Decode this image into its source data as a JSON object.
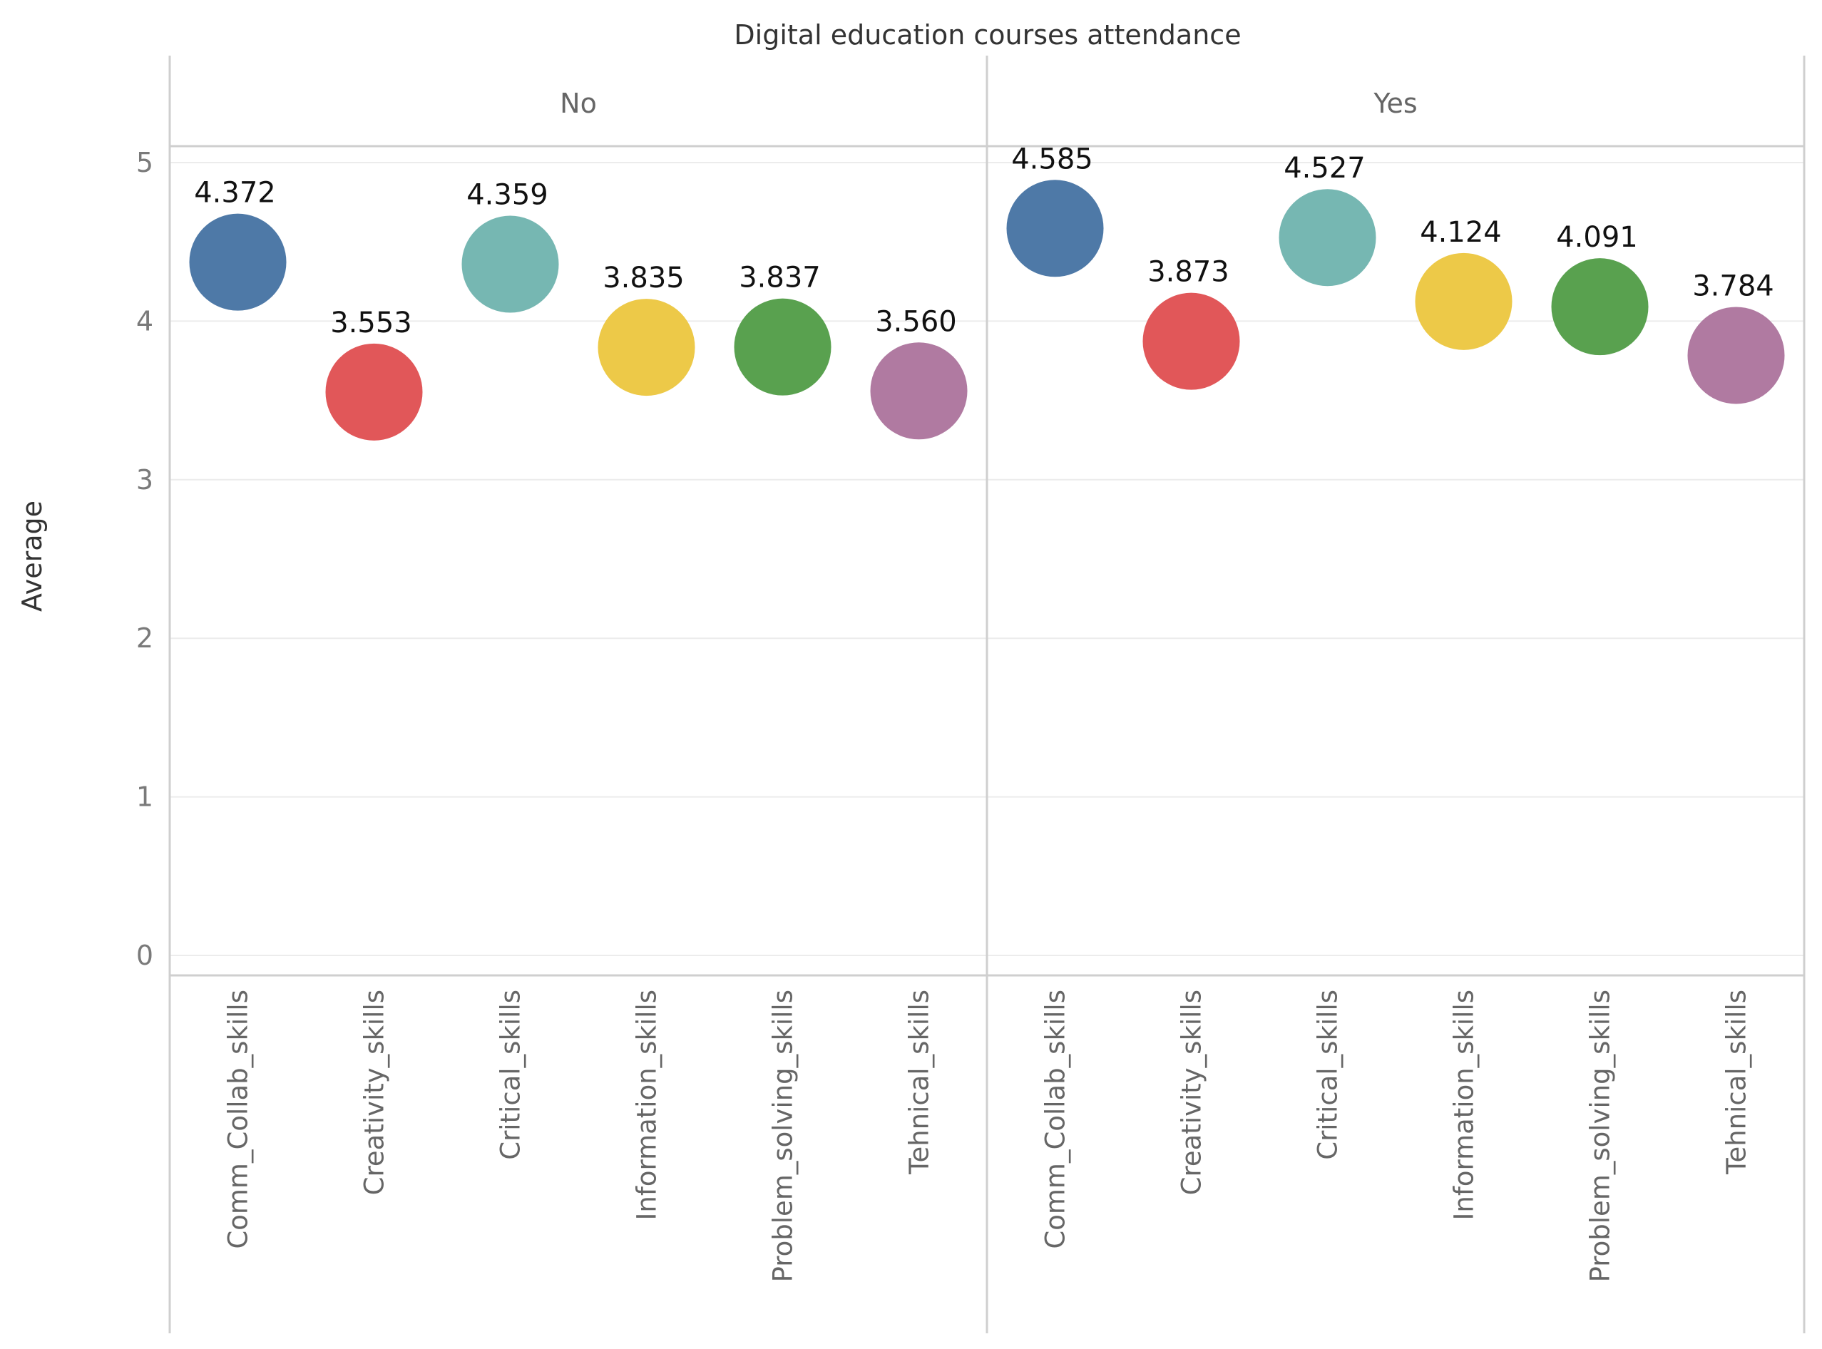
{
  "chart_data": {
    "type": "scatter",
    "title": "Digital education courses attendance",
    "ylabel": "Average",
    "xlabel": "",
    "ylim": [
      0,
      5
    ],
    "yticks": [
      0,
      1,
      2,
      3,
      4,
      5
    ],
    "grid": true,
    "categories": [
      "Comm_Collab_skills",
      "Creativity_skills",
      "Critical_skills",
      "Information_skills",
      "Problem_solving_skills",
      "Tehnical_skills"
    ],
    "colors": [
      "#4e79a7",
      "#e15759",
      "#76b7b2",
      "#edc948",
      "#59a14f",
      "#b07aa1"
    ],
    "panels": [
      {
        "name": "No",
        "values": [
          4.372,
          3.553,
          4.359,
          3.835,
          3.837,
          3.56
        ],
        "labels": [
          "4.372",
          "3.553",
          "4.359",
          "3.835",
          "3.837",
          "3.560"
        ]
      },
      {
        "name": "Yes",
        "values": [
          4.585,
          3.873,
          4.527,
          4.124,
          4.091,
          3.784
        ],
        "labels": [
          "4.585",
          "3.873",
          "4.527",
          "4.124",
          "4.091",
          "3.784"
        ]
      }
    ]
  }
}
